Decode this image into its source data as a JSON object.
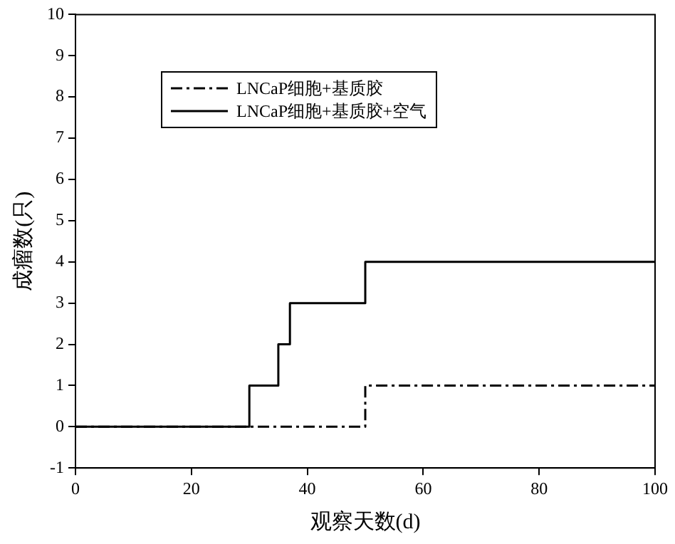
{
  "chart_data": {
    "type": "step",
    "xlabel": "观察天数(d)",
    "ylabel": "成瘤数(只)",
    "xlim": [
      0,
      100
    ],
    "xticks": [
      0,
      20,
      40,
      60,
      80,
      100
    ],
    "ylim": [
      -1,
      10
    ],
    "yticks": [
      -1,
      0,
      1,
      2,
      3,
      4,
      5,
      6,
      7,
      8,
      9,
      10
    ],
    "grid": false,
    "legend": "top left",
    "marker": "none",
    "series": [
      {
        "name": "LNCaP细胞+基质胶",
        "color": "#000000",
        "line_style": "dashed",
        "x": [
          0,
          50,
          100
        ],
        "values": [
          0,
          1,
          1
        ]
      },
      {
        "name": "LNCaP细胞+基质胶+空气",
        "color": "#000000",
        "line_style": "solid",
        "x": [
          0,
          30,
          35,
          37,
          50,
          100
        ],
        "values": [
          0,
          1,
          2,
          3,
          4,
          4
        ]
      }
    ]
  }
}
